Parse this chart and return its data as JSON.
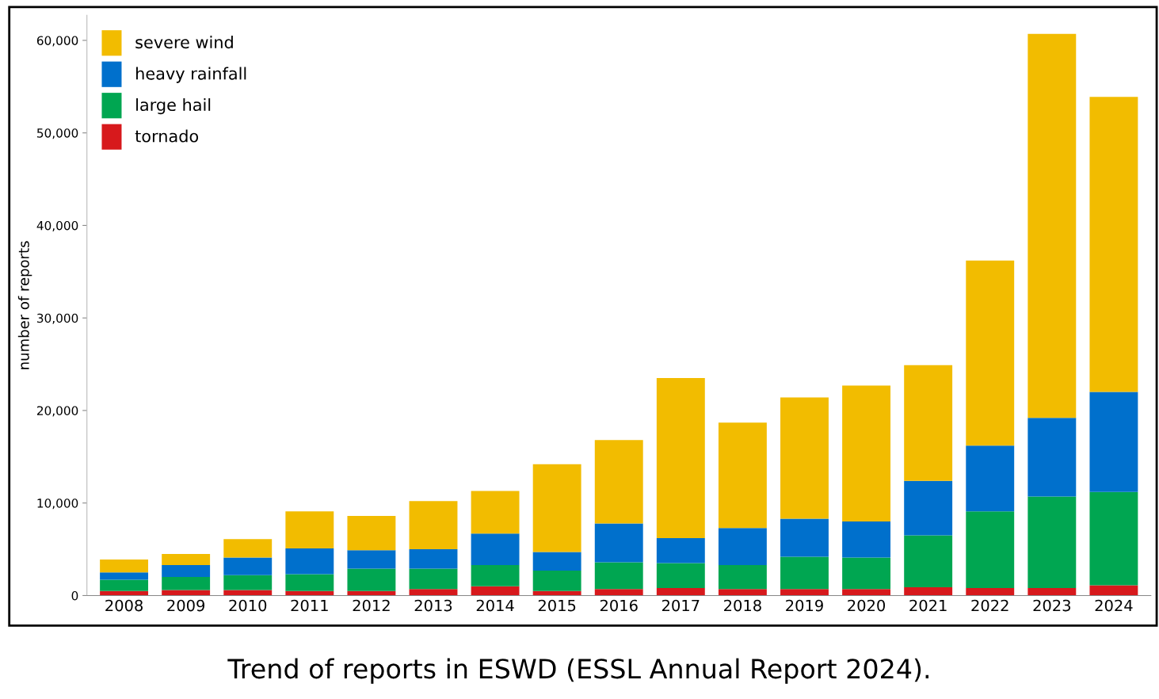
{
  "chart_data": {
    "type": "bar",
    "stacked": true,
    "ylabel": "number of reports",
    "categories": [
      "2008",
      "2009",
      "2010",
      "2011",
      "2012",
      "2013",
      "2014",
      "2015",
      "2016",
      "2017",
      "2018",
      "2019",
      "2020",
      "2021",
      "2022",
      "2023",
      "2024"
    ],
    "series": [
      {
        "name": "tornado",
        "color": "#d7191c",
        "values": [
          500,
          600,
          600,
          500,
          500,
          700,
          1000,
          500,
          700,
          800,
          700,
          700,
          700,
          900,
          800,
          800,
          1100
        ]
      },
      {
        "name": "large hail",
        "color": "#00a651",
        "values": [
          1200,
          1400,
          1600,
          1800,
          2400,
          2200,
          2300,
          2200,
          2900,
          2700,
          2600,
          3500,
          3400,
          5600,
          8300,
          9900,
          10100
        ]
      },
      {
        "name": "heavy rainfall",
        "color": "#0070cc",
        "values": [
          800,
          1300,
          1900,
          2800,
          2000,
          2100,
          3400,
          2000,
          4200,
          2700,
          4000,
          4100,
          3900,
          5900,
          7100,
          8500,
          10800
        ]
      },
      {
        "name": "severe wind",
        "color": "#f2bc00",
        "values": [
          1400,
          1200,
          2000,
          4000,
          3700,
          5200,
          4600,
          9500,
          9000,
          17300,
          11400,
          13100,
          14700,
          12500,
          20000,
          41500,
          31900
        ]
      }
    ],
    "ylim": [
      0,
      62700
    ],
    "yticks": [
      0,
      {
        "value": 10000,
        "label": "10,000"
      },
      {
        "value": 20000,
        "label": "20,000"
      },
      {
        "value": 30000,
        "label": "30,000"
      },
      {
        "value": 40000,
        "label": "40,000"
      },
      {
        "value": 50000,
        "label": "50,000"
      },
      {
        "value": 60000,
        "label": "60,000"
      }
    ],
    "grid": false,
    "legend": "top left",
    "annotations": [
      "Trend of reports in ESWD (ESSL Annual Report 2024)."
    ]
  }
}
